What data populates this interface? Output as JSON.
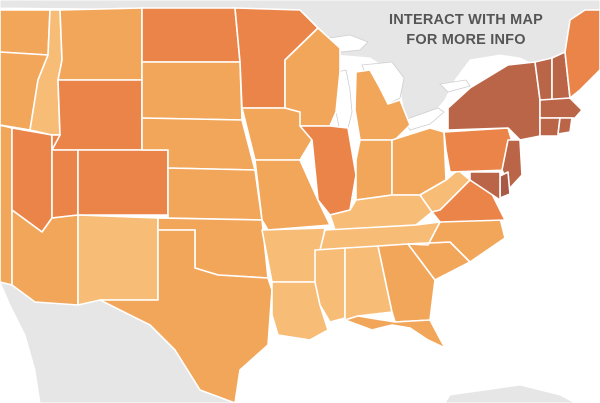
{
  "callout": {
    "line1": "INTERACT WITH MAP",
    "line2": "FOR MORE INFO"
  },
  "colors": {
    "background_land": "#e6e6e6",
    "water": "#ffffff",
    "border": "#ffffff",
    "scale": [
      "#fcd49a",
      "#f7bc76",
      "#f2a65a",
      "#eb8448",
      "#ba6548",
      "#a85a46"
    ]
  },
  "states": [
    {
      "id": "WA",
      "level": 2
    },
    {
      "id": "OR",
      "level": 2
    },
    {
      "id": "CA",
      "level": 2
    },
    {
      "id": "NV",
      "level": 3
    },
    {
      "id": "ID",
      "level": 1
    },
    {
      "id": "MT",
      "level": 2
    },
    {
      "id": "WY",
      "level": 3
    },
    {
      "id": "UT",
      "level": 3
    },
    {
      "id": "CO",
      "level": 3
    },
    {
      "id": "AZ",
      "level": 2
    },
    {
      "id": "NM",
      "level": 1
    },
    {
      "id": "ND",
      "level": 3
    },
    {
      "id": "SD",
      "level": 2
    },
    {
      "id": "NE",
      "level": 2
    },
    {
      "id": "KS",
      "level": 2
    },
    {
      "id": "OK",
      "level": 2
    },
    {
      "id": "TX",
      "level": 2
    },
    {
      "id": "MN",
      "level": 3
    },
    {
      "id": "IA",
      "level": 2
    },
    {
      "id": "MO",
      "level": 2
    },
    {
      "id": "AR",
      "level": 1
    },
    {
      "id": "LA",
      "level": 1
    },
    {
      "id": "WI",
      "level": 2
    },
    {
      "id": "IL",
      "level": 3
    },
    {
      "id": "MI",
      "level": 2
    },
    {
      "id": "IN",
      "level": 2
    },
    {
      "id": "OH",
      "level": 2
    },
    {
      "id": "KY",
      "level": 1
    },
    {
      "id": "TN",
      "level": 1
    },
    {
      "id": "MS",
      "level": 1
    },
    {
      "id": "AL",
      "level": 1
    },
    {
      "id": "GA",
      "level": 2
    },
    {
      "id": "FL",
      "level": 2
    },
    {
      "id": "SC",
      "level": 2
    },
    {
      "id": "NC",
      "level": 2
    },
    {
      "id": "VA",
      "level": 3
    },
    {
      "id": "WV",
      "level": 1
    },
    {
      "id": "PA",
      "level": 3
    },
    {
      "id": "NY",
      "level": 4
    },
    {
      "id": "VT",
      "level": 4
    },
    {
      "id": "NH",
      "level": 4
    },
    {
      "id": "ME",
      "level": 3
    },
    {
      "id": "MA",
      "level": 4
    },
    {
      "id": "CT",
      "level": 4
    },
    {
      "id": "RI",
      "level": 4
    },
    {
      "id": "NJ",
      "level": 4
    },
    {
      "id": "DE",
      "level": 5
    },
    {
      "id": "MD",
      "level": 4
    }
  ]
}
